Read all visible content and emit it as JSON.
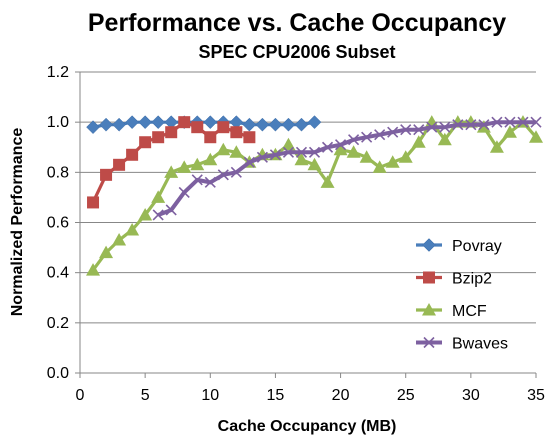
{
  "chart_data": {
    "type": "line",
    "title": "Performance vs. Cache Occupancy",
    "subtitle": "SPEC CPU2006 Subset",
    "xlabel": "Cache Occupancy (MB)",
    "ylabel": "Normalized Performance",
    "xlim": [
      0,
      35
    ],
    "ylim": [
      0,
      1.2
    ],
    "xticks": [
      0,
      5,
      10,
      15,
      20,
      25,
      30,
      35
    ],
    "yticks": [
      0.0,
      0.2,
      0.4,
      0.6,
      0.8,
      1.0,
      1.2
    ],
    "ytick_labels": [
      "0.0",
      "0.2",
      "0.4",
      "0.6",
      "0.8",
      "1.0",
      "1.2"
    ],
    "grid": "horizontal",
    "legend": "right",
    "series": [
      {
        "name": "Povray",
        "color": "#4A7EBB",
        "marker": "diamond",
        "x": [
          1,
          2,
          3,
          4,
          5,
          6,
          7,
          8,
          9,
          10,
          11,
          12,
          13,
          14,
          15,
          16,
          17,
          18
        ],
        "y": [
          0.98,
          0.99,
          0.99,
          1.0,
          1.0,
          1.0,
          1.0,
          1.0,
          1.0,
          1.0,
          1.0,
          1.0,
          0.99,
          0.99,
          0.99,
          0.99,
          0.99,
          1.0
        ]
      },
      {
        "name": "Bzip2",
        "color": "#BE4B48",
        "marker": "square",
        "x": [
          1,
          2,
          3,
          4,
          5,
          6,
          7,
          8,
          9,
          10,
          11,
          12,
          13
        ],
        "y": [
          0.68,
          0.79,
          0.83,
          0.87,
          0.92,
          0.94,
          0.96,
          1.0,
          0.98,
          0.94,
          0.98,
          0.96,
          0.94
        ]
      },
      {
        "name": "MCF",
        "color": "#98B954",
        "marker": "triangle",
        "x": [
          1,
          2,
          3,
          4,
          5,
          6,
          7,
          8,
          9,
          10,
          11,
          12,
          13,
          14,
          15,
          16,
          17,
          18,
          19,
          20,
          21,
          22,
          23,
          24,
          25,
          26,
          27,
          28,
          29,
          30,
          31,
          32,
          33,
          34,
          35
        ],
        "y": [
          0.41,
          0.48,
          0.53,
          0.57,
          0.63,
          0.7,
          0.8,
          0.82,
          0.83,
          0.85,
          0.89,
          0.88,
          0.84,
          0.87,
          0.87,
          0.91,
          0.85,
          0.83,
          0.76,
          0.89,
          0.88,
          0.86,
          0.82,
          0.84,
          0.86,
          0.92,
          1.0,
          0.93,
          1.0,
          1.0,
          0.98,
          0.9,
          0.96,
          1.0,
          0.94
        ]
      },
      {
        "name": "Bwaves",
        "color": "#7D60A0",
        "marker": "x",
        "x": [
          6,
          7,
          8,
          9,
          10,
          11,
          12,
          13,
          14,
          15,
          16,
          17,
          18,
          19,
          20,
          21,
          22,
          23,
          24,
          25,
          26,
          27,
          28,
          29,
          30,
          31,
          32,
          33,
          34,
          35
        ],
        "y": [
          0.63,
          0.65,
          0.72,
          0.77,
          0.76,
          0.79,
          0.8,
          0.84,
          0.86,
          0.87,
          0.88,
          0.88,
          0.88,
          0.9,
          0.91,
          0.93,
          0.94,
          0.95,
          0.96,
          0.97,
          0.97,
          0.98,
          0.98,
          0.99,
          0.99,
          0.99,
          1.0,
          1.0,
          1.0,
          1.0
        ]
      }
    ]
  }
}
